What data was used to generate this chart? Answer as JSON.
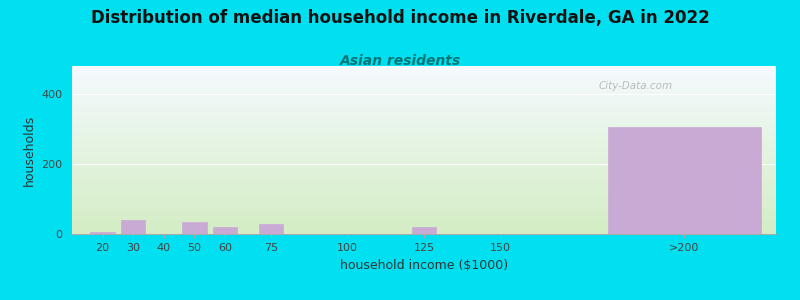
{
  "title": "Distribution of median household income in Riverdale, GA in 2022",
  "subtitle": "Asian residents",
  "xlabel": "household income ($1000)",
  "ylabel": "households",
  "categories": [
    "20",
    "30",
    "40",
    "50",
    "60",
    "75",
    "100",
    "125",
    "150",
    ">200"
  ],
  "x_positions": [
    20,
    30,
    40,
    50,
    60,
    75,
    100,
    125,
    150,
    210
  ],
  "bar_widths": [
    8,
    8,
    8,
    8,
    8,
    8,
    8,
    8,
    8,
    50
  ],
  "values": [
    5,
    40,
    0,
    35,
    20,
    30,
    0,
    20,
    0,
    305
  ],
  "bar_color": "#c9aad4",
  "background_outer": "#00e0f0",
  "background_inner_top": "#f5faff",
  "background_inner_bottom": "#d4edc4",
  "ylim": [
    0,
    480
  ],
  "yticks": [
    0,
    200,
    400
  ],
  "xlim": [
    10,
    240
  ],
  "xtick_positions": [
    20,
    30,
    40,
    50,
    60,
    75,
    100,
    125,
    150,
    210
  ],
  "xtick_labels": [
    "20",
    "30",
    "40",
    "50",
    "60",
    "75",
    "100",
    "125",
    "150",
    ">200"
  ],
  "title_fontsize": 12,
  "subtitle_fontsize": 10,
  "axis_label_fontsize": 9,
  "tick_fontsize": 8,
  "watermark": "City-Data.com"
}
